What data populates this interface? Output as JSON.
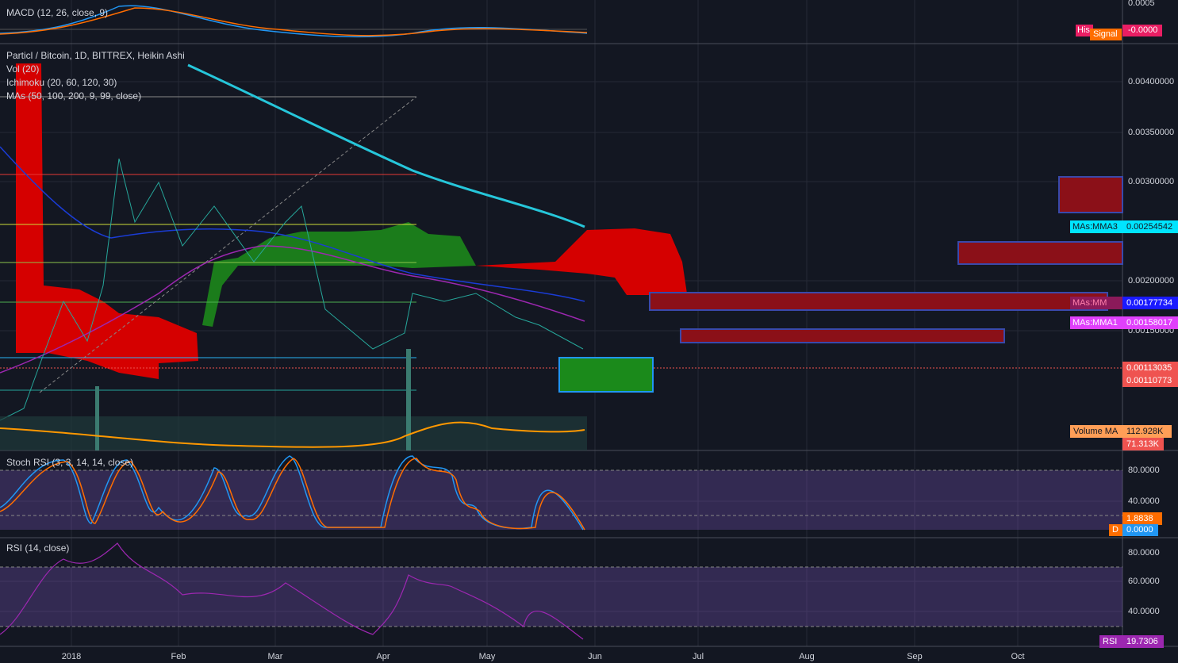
{
  "macd": {
    "label": "MACD (12, 26, close, 9)",
    "axis": [
      "0.0005"
    ],
    "hist_tag": "His",
    "hist_value": "-0.0000",
    "signal_tag": "Signal"
  },
  "main": {
    "title": "Particl / Bitcoin, 1D, BITTREX, Heikin Ashi",
    "volume": "Vol (20)",
    "ichimoku": "Ichimoku (20, 60, 120, 30)",
    "mas": "MAs (50, 100, 200, 9, 99, close)",
    "axis": [
      "0.00400000",
      "0.00350000",
      "0.00300000",
      "0.00200000",
      "0.00150000"
    ],
    "tags": {
      "mma3_name": "MAs:MMA3",
      "mma3_value": "0.00254542",
      "mma2_name": "MAs:MM",
      "mma2_value": "0.00177734",
      "mma1_name": "MAs:MMA1",
      "mma1_value": "0.00158017",
      "price_a": "0.00113035",
      "price_b": "0.00110773",
      "volume_ma_name": "Volume MA",
      "volume_ma_value": "112.928K",
      "volume_value": "71.313K"
    }
  },
  "stoch": {
    "label": "Stoch RSI (3, 3, 14, 14, close)",
    "axis": [
      "80.0000",
      "40.0000"
    ],
    "k_value": "1.8838",
    "d_name": "D",
    "d_value": "0.0000"
  },
  "rsi": {
    "label": "RSI (14, close)",
    "axis": [
      "80.0000",
      "60.0000",
      "40.0000"
    ],
    "tag_name": "RSI",
    "tag_value": "19.7306"
  },
  "time_axis": [
    "2018",
    "Feb",
    "Mar",
    "Apr",
    "May",
    "Jun",
    "Jul",
    "Aug",
    "Sep",
    "Oct"
  ]
}
